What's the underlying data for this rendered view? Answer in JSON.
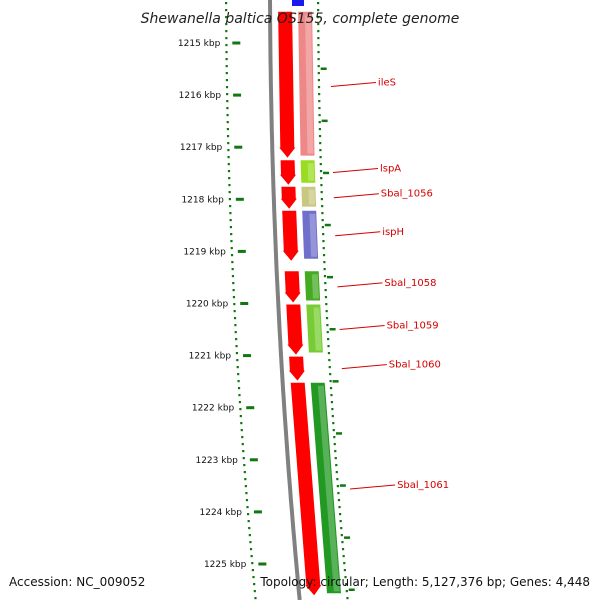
{
  "title": "Shewanella baltica OS155, complete genome",
  "footer": {
    "accession": "Accession: NC_009052",
    "topology": "Topology: circular; Length: 5,127,376 bp; Genes: 4,448"
  },
  "colors": {
    "forward_cds": "#ff0000",
    "backbone": "#808080",
    "tick": "#117711",
    "label": "#d40000"
  },
  "scale": {
    "unit": "kbp",
    "ticks": [
      {
        "value": 1215,
        "label": "1215 kbp"
      },
      {
        "value": 1216,
        "label": "1216 kbp"
      },
      {
        "value": 1217,
        "label": "1217 kbp"
      },
      {
        "value": 1218,
        "label": "1218 kbp"
      },
      {
        "value": 1219,
        "label": "1219 kbp"
      },
      {
        "value": 1220,
        "label": "1220 kbp"
      },
      {
        "value": 1221,
        "label": "1221 kbp"
      },
      {
        "value": 1222,
        "label": "1222 kbp"
      },
      {
        "value": 1223,
        "label": "1223 kbp"
      },
      {
        "value": 1224,
        "label": "1224 kbp"
      },
      {
        "value": 1225,
        "label": "1225 kbp"
      }
    ]
  },
  "genes": [
    {
      "name": "ileS",
      "start": 1214.4,
      "end": 1217.2
    },
    {
      "name": "lspA",
      "start": 1217.25,
      "end": 1217.72
    },
    {
      "name": "Sbal_1056",
      "start": 1217.76,
      "end": 1218.18
    },
    {
      "name": "ispH",
      "start": 1218.22,
      "end": 1219.18
    },
    {
      "name": "Sbal_1058",
      "start": 1219.38,
      "end": 1219.98
    },
    {
      "name": "Sbal_1059",
      "start": 1220.02,
      "end": 1220.98
    },
    {
      "name": "Sbal_1060",
      "start": 1221.02,
      "end": 1221.48
    },
    {
      "name": "Sbal_1061",
      "start": 1221.52,
      "end": 1225.6
    }
  ],
  "annotation_tracks": [
    {
      "gene": "ileS",
      "color": "#ee8888"
    },
    {
      "gene": "lspA",
      "color": "#99dd22"
    },
    {
      "gene": "Sbal_1056",
      "color": "#c8c880"
    },
    {
      "gene": "ispH",
      "color": "#7070cc"
    },
    {
      "gene": "Sbal_1058",
      "color": "#44aa22"
    },
    {
      "gene": "Sbal_1059",
      "color": "#77cc33"
    },
    {
      "gene": "Sbal_1061",
      "color": "#229922"
    }
  ]
}
